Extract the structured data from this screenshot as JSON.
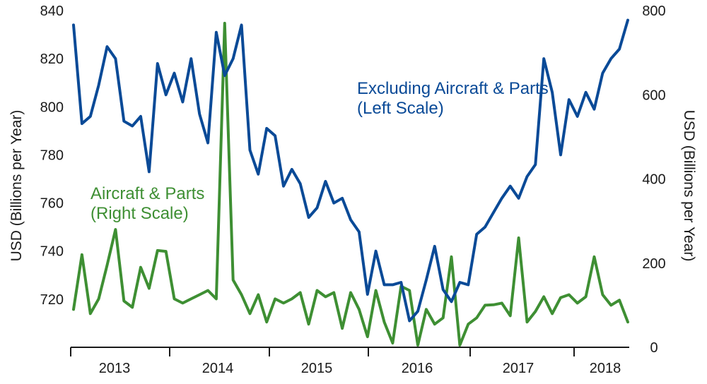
{
  "chart_data": {
    "type": "line",
    "title": "",
    "xlabel": "",
    "ylabel": "USD (Billions per Year)",
    "y2label": "USD (Billions per Year)",
    "x_categories": [
      "2013",
      "2014",
      "2015",
      "2016",
      "2017",
      "2018"
    ],
    "ylim": [
      700,
      840
    ],
    "y_ticks": [
      720,
      740,
      760,
      780,
      800,
      820,
      840
    ],
    "y2lim": [
      0,
      800
    ],
    "y2_ticks": [
      0,
      200,
      400,
      600,
      800
    ],
    "grid": false,
    "series": [
      {
        "name": "Excluding Aircraft & Parts (Left Scale)",
        "axis": "left",
        "color": "#0a4a97",
        "x_start": "2012-08",
        "values": [
          834,
          793,
          796,
          809,
          825,
          820,
          794,
          792,
          796,
          773,
          818,
          805,
          814,
          802,
          820,
          797,
          785,
          831,
          813,
          820,
          834,
          782,
          772,
          791,
          788,
          767,
          774,
          768,
          754,
          758,
          769,
          760,
          762,
          753,
          748,
          722,
          740,
          726,
          726,
          727,
          711,
          715,
          728,
          742,
          724,
          719,
          727,
          726,
          747,
          750,
          756,
          762,
          767,
          762,
          771,
          776,
          820,
          806,
          780,
          803,
          796,
          806,
          799,
          814,
          820,
          824,
          836
        ]
      },
      {
        "name": "Aircraft & Parts (Right Scale)",
        "axis": "right",
        "color": "#3e8f33",
        "x_start": "2012-08",
        "values": [
          90,
          220,
          80,
          115,
          195,
          280,
          110,
          95,
          190,
          140,
          230,
          228,
          115,
          105,
          115,
          125,
          135,
          115,
          770,
          160,
          125,
          80,
          125,
          60,
          115,
          105,
          115,
          130,
          55,
          135,
          120,
          130,
          45,
          130,
          90,
          25,
          135,
          60,
          10,
          145,
          135,
          5,
          90,
          55,
          70,
          215,
          5,
          55,
          70,
          100,
          101,
          105,
          75,
          260,
          60,
          85,
          120,
          80,
          118,
          125,
          105,
          120,
          215,
          125,
          100,
          112,
          60
        ]
      }
    ],
    "annotations": [
      {
        "series": "Excluding Aircraft & Parts (Left Scale)",
        "lines": [
          "Excluding Aircraft & Parts",
          "(Left Scale)"
        ],
        "color": "#0a4a97"
      },
      {
        "series": "Aircraft & Parts (Right Scale)",
        "lines": [
          "Aircraft & Parts",
          "(Right Scale)"
        ],
        "color": "#3e8f33"
      }
    ]
  }
}
